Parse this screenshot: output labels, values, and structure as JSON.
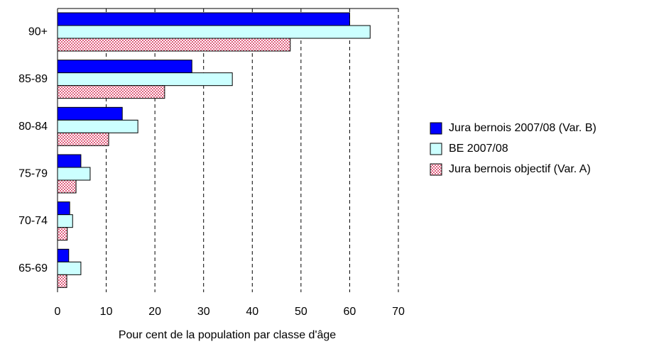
{
  "chart_data": {
    "type": "barh",
    "xlabel": "Pour cent de la population par classe d'âge",
    "categories": [
      "90+",
      "85-89",
      "80-84",
      "75-79",
      "70-74",
      "65-69"
    ],
    "series": [
      {
        "name": "Jura bernois 2007/08 (Var. B)",
        "color": "#0000ff",
        "values": [
          60,
          27.6,
          13.3,
          4.8,
          2.5,
          2.3
        ]
      },
      {
        "name": "BE 2007/08",
        "color": "#ccffff",
        "values": [
          64.2,
          35.9,
          16.5,
          6.7,
          3.1,
          4.8
        ]
      },
      {
        "name": "Jura bernois objectif (Var. A)",
        "color": "#e0607f",
        "pattern": "checker",
        "values": [
          47.8,
          22.0,
          10.5,
          3.8,
          2.0,
          1.9
        ]
      }
    ],
    "xlim": [
      0,
      70
    ],
    "xticks": [
      0,
      10,
      20,
      30,
      40,
      50,
      60,
      70
    ],
    "grid": true,
    "legend": "right"
  }
}
